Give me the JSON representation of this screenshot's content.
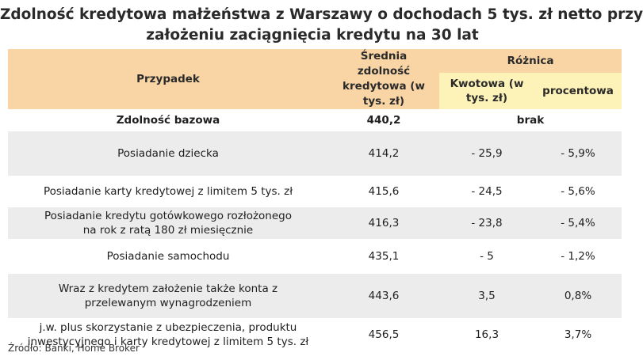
{
  "title": {
    "line1": "Zdolność kredytowa małżeństwa z Warszawy o dochodach 5 tys. zł netto przy",
    "line2": "założeniu zaciągnięcia kredytu na 30 lat"
  },
  "header": {
    "case": "Przypadek",
    "avg": "Średnia zdolność kredytowa (w tys. zł)",
    "diff": "Różnica",
    "amount": "Kwotowa (w tys. zł)",
    "percent": "procentowa"
  },
  "base_row": {
    "case": "Zdolność bazowa",
    "avg": "440,2",
    "diff": "brak"
  },
  "rows": [
    {
      "case": "Posiadanie dziecka",
      "avg": "414,2",
      "amount": "- 25,9",
      "percent": "- 5,9%"
    },
    {
      "case": "Posiadanie karty kredytowej z limitem 5 tys. zł",
      "avg": "415,6",
      "amount": "- 24,5",
      "percent": "- 5,6%"
    },
    {
      "case": "Posiadanie kredytu gotówkowego rozłożonego na rok z ratą 180 zł miesięcznie",
      "avg": "416,3",
      "amount": "- 23,8",
      "percent": "- 5,4%"
    },
    {
      "case": "Posiadanie samochodu",
      "avg": "435,1",
      "amount": "- 5",
      "percent": "- 1,2%"
    },
    {
      "case": "Wraz z kredytem założenie także konta z przelewanym wynagrodzeniem",
      "avg": "443,6",
      "amount": "3,5",
      "percent": "0,8%"
    },
    {
      "case": "j.w. plus skorzystanie z ubezpieczenia, produktu inwestycyjnego i karty kredytowej z limitem 5 tys. zł",
      "avg": "456,5",
      "amount": "16,3",
      "percent": "3,7%"
    }
  ],
  "source": "Źródło: Banki, Home Broker",
  "colors": {
    "header_bg": "#f9d5a6",
    "subheader_bg": "#fdf2b8",
    "row_shade": "#ececec"
  }
}
